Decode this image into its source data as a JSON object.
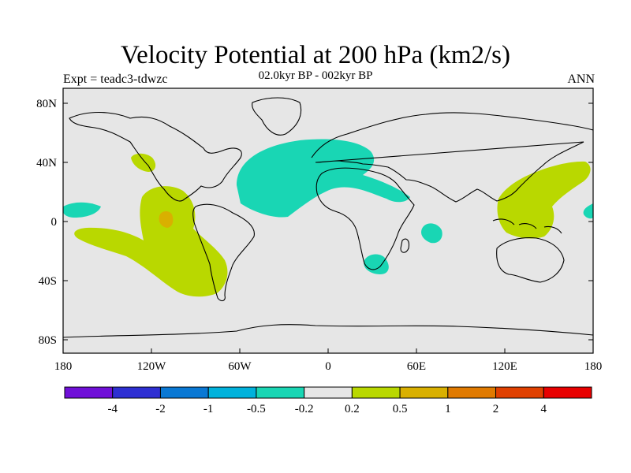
{
  "header": {
    "title": "Velocity Potential at 200 hPa (km2/s)",
    "subtitle": "02.0kyr BP - 002kyr BP",
    "left_label": "Expt = teadc3-tdwzc",
    "right_label": "ANN"
  },
  "map": {
    "lat_ticks": [
      "80N",
      "40N",
      "0",
      "40S",
      "80S"
    ],
    "lon_ticks": [
      "180",
      "120W",
      "60W",
      "0",
      "60E",
      "120E",
      "180"
    ],
    "background_color": "#e6e6e6"
  },
  "colorbar": {
    "labels": [
      "-4",
      "-2",
      "-1",
      "-0.5",
      "-0.2",
      "0.2",
      "0.5",
      "1",
      "2",
      "4"
    ],
    "colors": [
      "#7010d8",
      "#2e2fd2",
      "#0a78d4",
      "#00b2dc",
      "#19d6b4",
      "#e6e6e6",
      "#b9d800",
      "#d9b000",
      "#e07a00",
      "#e04000",
      "#e80000"
    ]
  }
}
